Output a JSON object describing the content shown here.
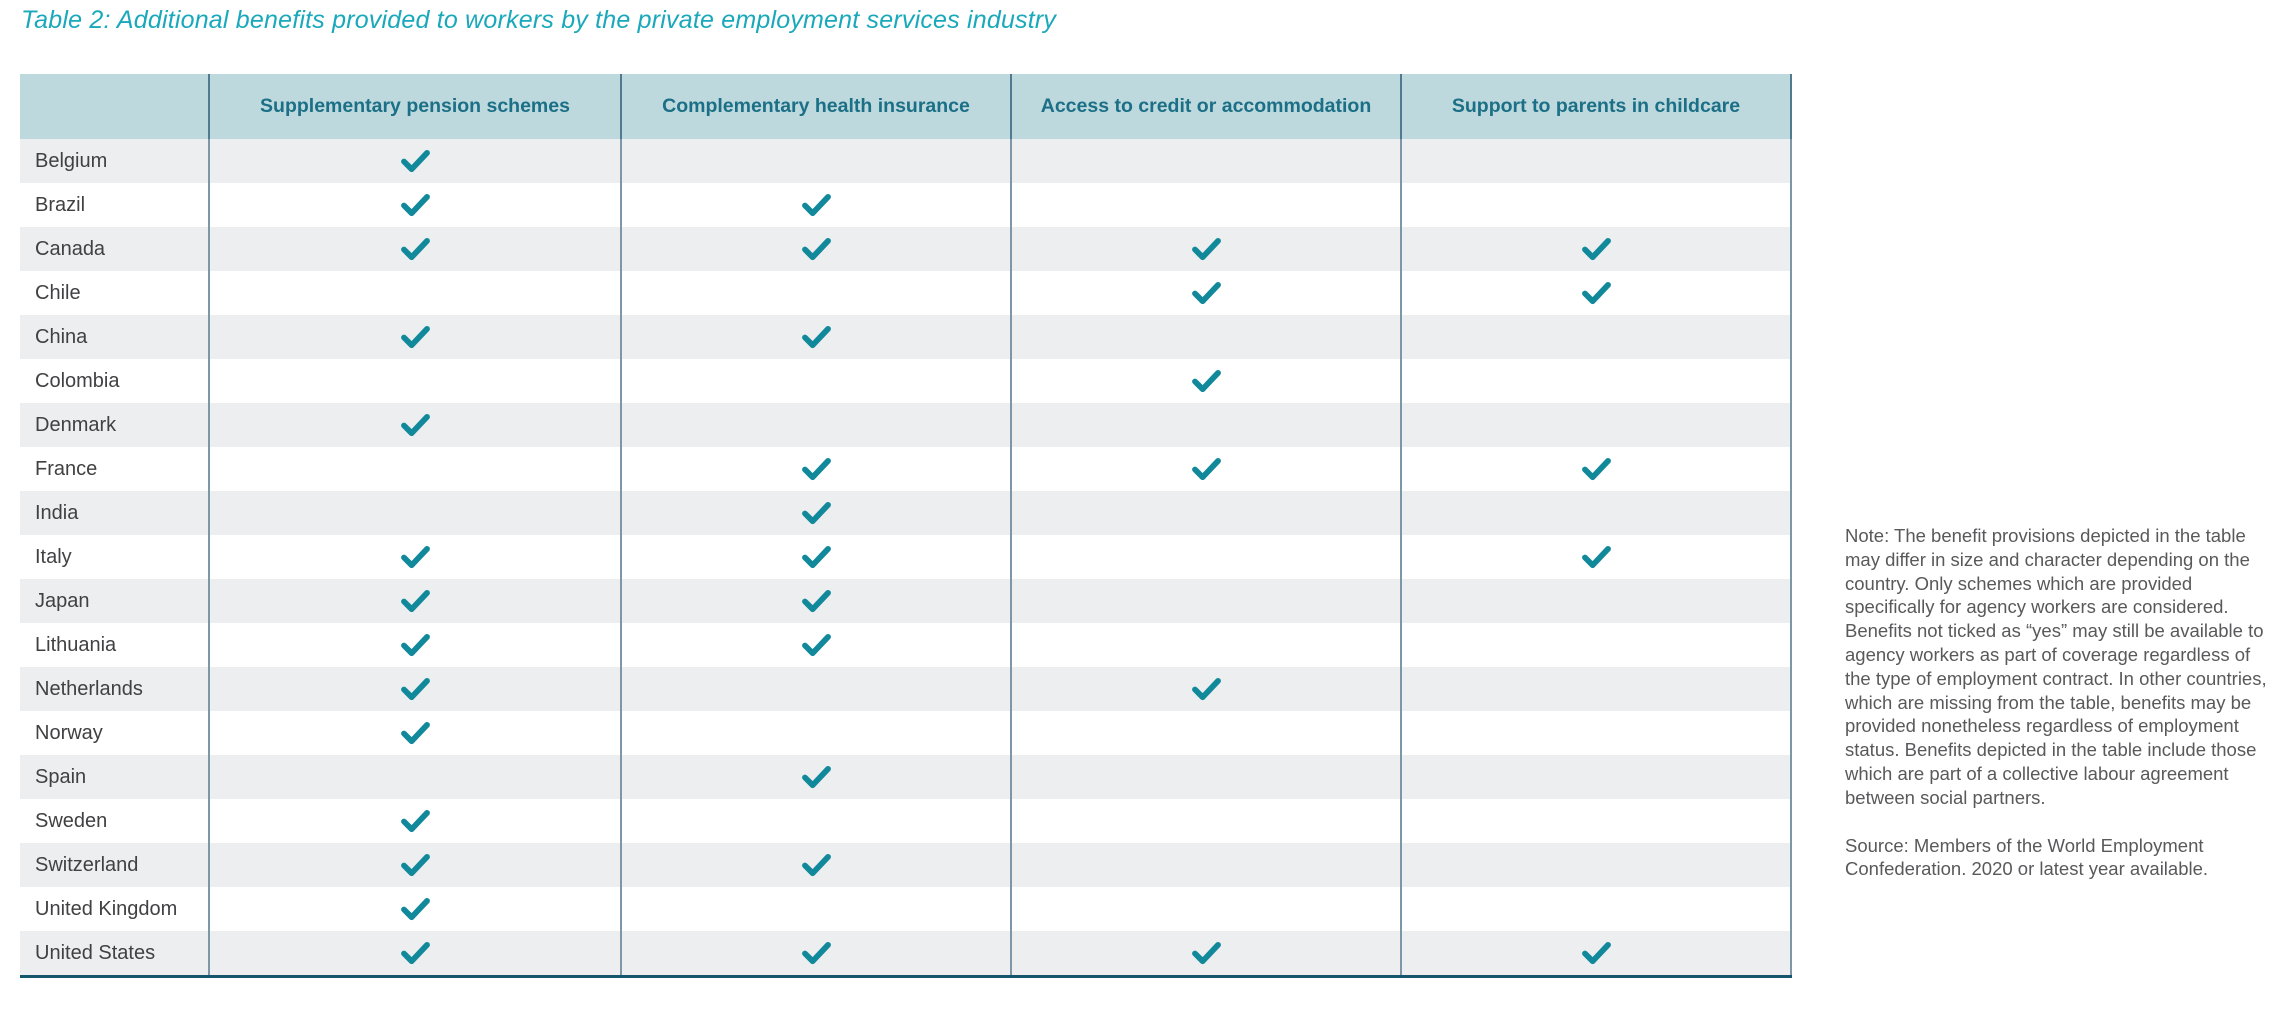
{
  "title": "Table 2: Additional benefits provided to workers by the private employment services industry",
  "colors": {
    "accent_teal": "#1aa8bb",
    "header_bg": "#bdd9dd",
    "header_text": "#1b6f86",
    "header_line": "#517a90",
    "grid_line": "#7e97a8",
    "check": "#11899b",
    "row_alt_bg": "#edeeef",
    "row_bg": "#ffffff",
    "body_text": "#414042",
    "note_text": "#59595b",
    "bottom_border": "#16566c"
  },
  "table": {
    "columns": [
      "",
      "Supplementary pension schemes",
      "Complementary health insurance",
      "Access to credit or accommodation",
      "Support to parents in childcare"
    ],
    "check_icon": "check-icon",
    "rows": [
      {
        "country": "Belgium",
        "checks": [
          true,
          false,
          false,
          false
        ]
      },
      {
        "country": "Brazil",
        "checks": [
          true,
          true,
          false,
          false
        ]
      },
      {
        "country": "Canada",
        "checks": [
          true,
          true,
          true,
          true
        ]
      },
      {
        "country": "Chile",
        "checks": [
          false,
          false,
          true,
          true
        ]
      },
      {
        "country": "China",
        "checks": [
          true,
          true,
          false,
          false
        ]
      },
      {
        "country": "Colombia",
        "checks": [
          false,
          false,
          true,
          false
        ]
      },
      {
        "country": "Denmark",
        "checks": [
          true,
          false,
          false,
          false
        ]
      },
      {
        "country": "France",
        "checks": [
          false,
          true,
          true,
          true
        ]
      },
      {
        "country": "India",
        "checks": [
          false,
          true,
          false,
          false
        ]
      },
      {
        "country": "Italy",
        "checks": [
          true,
          true,
          false,
          true
        ]
      },
      {
        "country": "Japan",
        "checks": [
          true,
          true,
          false,
          false
        ]
      },
      {
        "country": "Lithuania",
        "checks": [
          true,
          true,
          false,
          false
        ]
      },
      {
        "country": "Netherlands",
        "checks": [
          true,
          false,
          true,
          false
        ]
      },
      {
        "country": "Norway",
        "checks": [
          true,
          false,
          false,
          false
        ]
      },
      {
        "country": "Spain",
        "checks": [
          false,
          true,
          false,
          false
        ]
      },
      {
        "country": "Sweden",
        "checks": [
          true,
          false,
          false,
          false
        ]
      },
      {
        "country": "Switzerland",
        "checks": [
          true,
          true,
          false,
          false
        ]
      },
      {
        "country": "United Kingdom",
        "checks": [
          true,
          false,
          false,
          false
        ]
      },
      {
        "country": "United States",
        "checks": [
          true,
          true,
          true,
          true
        ]
      }
    ]
  },
  "note": "Note: The benefit provisions depicted in the table may differ in size and character depending on the country. Only schemes which are provided specifically for agency workers are considered. Benefits not ticked as “yes” may still be available to agency workers as part of coverage regardless of the type of employment contract. In other countries, which are missing from the table, benefits may be provided nonetheless regardless of employment status. Benefits depicted in the table include those which are part of a collective labour agreement between social partners.",
  "source": "Source: Members of the World Employment Confederation. 2020 or latest year available."
}
